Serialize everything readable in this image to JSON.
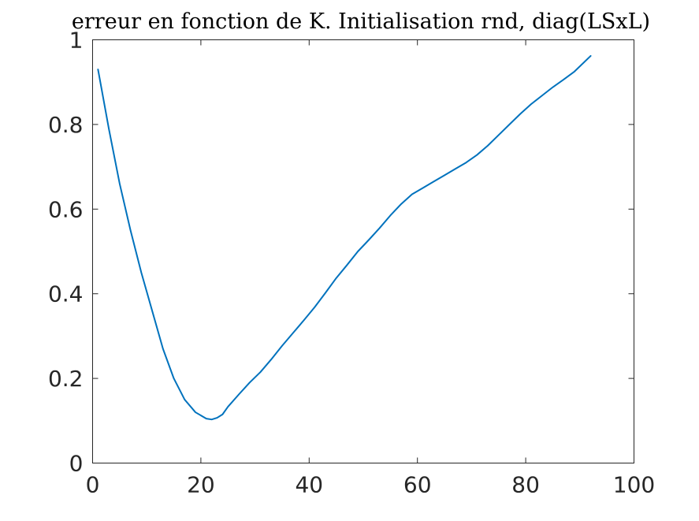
{
  "chart_data": {
    "type": "line",
    "title": "erreur en fonction de K. Initialisation rnd, diag(LSxL)",
    "xlabel": "",
    "ylabel": "",
    "xlim": [
      0,
      100
    ],
    "ylim": [
      0,
      1
    ],
    "x_ticks": [
      0,
      20,
      40,
      60,
      80,
      100
    ],
    "y_ticks": [
      0,
      0.2,
      0.4,
      0.6,
      0.8,
      1
    ],
    "x_tick_labels": [
      "0",
      "20",
      "40",
      "60",
      "80",
      "100"
    ],
    "y_tick_labels": [
      "0",
      "0.2",
      "0.4",
      "0.6",
      "0.8",
      "1"
    ],
    "grid": false,
    "series": [
      {
        "color": "#0072bd",
        "x": [
          1,
          3,
          5,
          7,
          9,
          11,
          13,
          15,
          17,
          19,
          21,
          22,
          23,
          24,
          25,
          27,
          29,
          31,
          33,
          35,
          37,
          39,
          41,
          43,
          45,
          47,
          49,
          51,
          53,
          55,
          57,
          59,
          61,
          63,
          65,
          67,
          69,
          71,
          73,
          75,
          77,
          79,
          81,
          83,
          85,
          87,
          89,
          92
        ],
        "y": [
          0.93,
          0.79,
          0.66,
          0.55,
          0.45,
          0.36,
          0.27,
          0.2,
          0.15,
          0.12,
          0.105,
          0.103,
          0.107,
          0.115,
          0.133,
          0.162,
          0.19,
          0.215,
          0.245,
          0.277,
          0.307,
          0.337,
          0.368,
          0.402,
          0.437,
          0.468,
          0.5,
          0.527,
          0.555,
          0.585,
          0.612,
          0.635,
          0.65,
          0.665,
          0.68,
          0.695,
          0.71,
          0.728,
          0.75,
          0.775,
          0.8,
          0.825,
          0.848,
          0.868,
          0.888,
          0.906,
          0.925,
          0.962
        ]
      }
    ]
  }
}
